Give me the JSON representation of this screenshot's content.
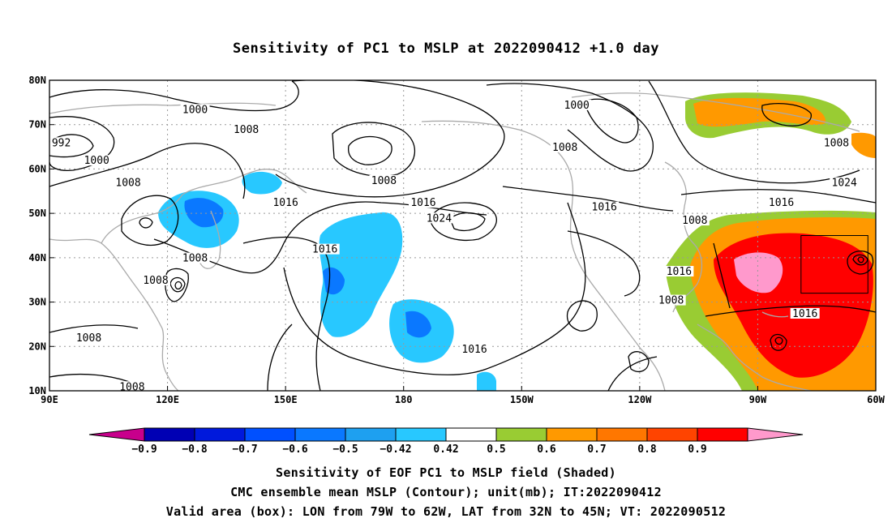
{
  "title": "Sensitivity of PC1 to MSLP at 2022090412 +1.0 day",
  "map": {
    "lon_range": [
      90,
      300
    ],
    "lat_range": [
      10,
      80
    ],
    "lat_ticks": [
      {
        "value": 80,
        "label": "80N"
      },
      {
        "value": 70,
        "label": "70N"
      },
      {
        "value": 60,
        "label": "60N"
      },
      {
        "value": 50,
        "label": "50N"
      },
      {
        "value": 40,
        "label": "40N"
      },
      {
        "value": 30,
        "label": "30N"
      },
      {
        "value": 20,
        "label": "20N"
      },
      {
        "value": 10,
        "label": "10N"
      }
    ],
    "lon_ticks": [
      {
        "value": 90,
        "label": "90E"
      },
      {
        "value": 120,
        "label": "120E"
      },
      {
        "value": 150,
        "label": "150E"
      },
      {
        "value": 180,
        "label": "180"
      },
      {
        "value": 210,
        "label": "150W"
      },
      {
        "value": 240,
        "label": "120W"
      },
      {
        "value": 270,
        "label": "90W"
      },
      {
        "value": 300,
        "label": "60W"
      }
    ],
    "valid_box": {
      "lon": [
        281,
        298
      ],
      "lat": [
        32,
        45
      ]
    },
    "contour_labels": [
      {
        "text": "1000",
        "lon": 127,
        "lat": 73
      },
      {
        "text": "1008",
        "lon": 140,
        "lat": 68.5
      },
      {
        "text": "992",
        "lon": 93,
        "lat": 65.5
      },
      {
        "text": "1000",
        "lon": 102,
        "lat": 61.5
      },
      {
        "text": "1008",
        "lon": 110,
        "lat": 56.5
      },
      {
        "text": "1016",
        "lon": 150,
        "lat": 52
      },
      {
        "text": "1008",
        "lon": 127,
        "lat": 39.5
      },
      {
        "text": "1008",
        "lon": 117,
        "lat": 34.5
      },
      {
        "text": "1008",
        "lon": 100,
        "lat": 21.5
      },
      {
        "text": "1008",
        "lon": 111,
        "lat": 10.5
      },
      {
        "text": "1016",
        "lon": 160,
        "lat": 41.5
      },
      {
        "text": "1008",
        "lon": 175,
        "lat": 57
      },
      {
        "text": "1016",
        "lon": 185,
        "lat": 52
      },
      {
        "text": "1024",
        "lon": 189,
        "lat": 48.5
      },
      {
        "text": "1016",
        "lon": 198,
        "lat": 19
      },
      {
        "text": "1000",
        "lon": 224,
        "lat": 74
      },
      {
        "text": "1008",
        "lon": 221,
        "lat": 64.5
      },
      {
        "text": "1016",
        "lon": 231,
        "lat": 51
      },
      {
        "text": "1008",
        "lon": 254,
        "lat": 48
      },
      {
        "text": "1016",
        "lon": 250,
        "lat": 36.5
      },
      {
        "text": "1008",
        "lon": 248,
        "lat": 30
      },
      {
        "text": "1016",
        "lon": 276,
        "lat": 52
      },
      {
        "text": "1024",
        "lon": 292,
        "lat": 56.5
      },
      {
        "text": "1008",
        "lon": 290,
        "lat": 65.5
      },
      {
        "text": "1016",
        "lon": 282,
        "lat": 27
      }
    ]
  },
  "colorbar": {
    "colors": [
      "#c8008c",
      "#0000b4",
      "#0019dc",
      "#0050ff",
      "#0a78ff",
      "#1ea0f0",
      "#28c8ff",
      "#ffffff",
      "#99cc33",
      "#ff9900",
      "#ff7700",
      "#ff4400",
      "#ff0000",
      "#ff99cc"
    ],
    "labels": [
      "−0.9",
      "−0.8",
      "−0.7",
      "−0.6",
      "−0.5",
      "−0.42",
      "0.42",
      "0.5",
      "0.6",
      "0.7",
      "0.8",
      "0.9"
    ]
  },
  "footer": {
    "line1": "Sensitivity of EOF PC1 to MSLP field (Shaded)",
    "line2": "CMC ensemble mean MSLP (Contour); unit(mb); IT:2022090412",
    "line3": "Valid area (box): LON from 79W to 62W, LAT from 32N to 45N; VT: 2022090512"
  }
}
